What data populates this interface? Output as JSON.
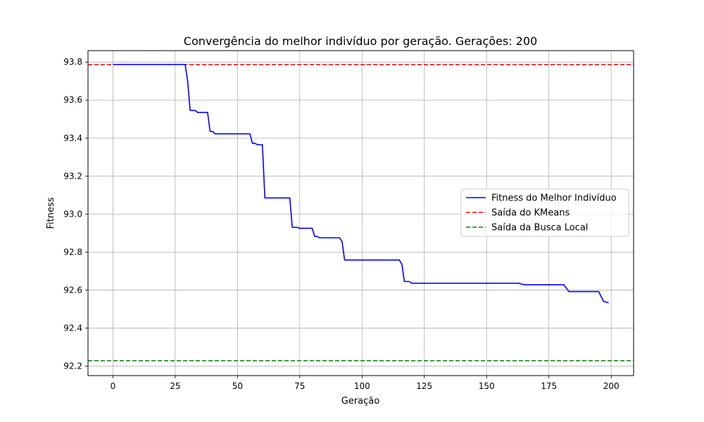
{
  "chart_data": {
    "type": "line",
    "title": "Convergência do melhor indivíduo por geração. Gerações: 200",
    "xlabel": "Geração",
    "ylabel": "Fitness",
    "xlim": [
      -10,
      209
    ],
    "ylim": [
      92.15,
      93.86
    ],
    "xticks": [
      0,
      25,
      50,
      75,
      100,
      125,
      150,
      175,
      200
    ],
    "yticks": [
      92.2,
      92.4,
      92.6,
      92.8,
      93.0,
      93.2,
      93.4,
      93.6,
      93.8
    ],
    "grid": true,
    "legend_position": "center-right",
    "series": [
      {
        "name": "Fitness do Melhor Indivíduo",
        "color": "#0000ff",
        "style": "solid",
        "points": [
          [
            0,
            93.787
          ],
          [
            29,
            93.787
          ],
          [
            30,
            93.7
          ],
          [
            31,
            93.545
          ],
          [
            33,
            93.545
          ],
          [
            34,
            93.535
          ],
          [
            38,
            93.535
          ],
          [
            39,
            93.435
          ],
          [
            40,
            93.435
          ],
          [
            41,
            93.422
          ],
          [
            55,
            93.422
          ],
          [
            56,
            93.372
          ],
          [
            57,
            93.372
          ],
          [
            58,
            93.365
          ],
          [
            60,
            93.365
          ],
          [
            61,
            93.085
          ],
          [
            71,
            93.085
          ],
          [
            72,
            92.93
          ],
          [
            74,
            92.93
          ],
          [
            75,
            92.925
          ],
          [
            80,
            92.925
          ],
          [
            81,
            92.882
          ],
          [
            82,
            92.882
          ],
          [
            83,
            92.875
          ],
          [
            91,
            92.875
          ],
          [
            92,
            92.855
          ],
          [
            93,
            92.758
          ],
          [
            115,
            92.758
          ],
          [
            116,
            92.735
          ],
          [
            117,
            92.645
          ],
          [
            119,
            92.645
          ],
          [
            120,
            92.636
          ],
          [
            163,
            92.636
          ],
          [
            165,
            92.628
          ],
          [
            181,
            92.628
          ],
          [
            183,
            92.592
          ],
          [
            195,
            92.592
          ],
          [
            196,
            92.565
          ],
          [
            197,
            92.54
          ],
          [
            199,
            92.533
          ]
        ]
      },
      {
        "name": "Saída do KMeans",
        "color": "#ff0000",
        "style": "dashed",
        "hline": 93.787
      },
      {
        "name": "Saída da Busca Local",
        "color": "#008000",
        "style": "dashed",
        "hline": 92.228
      }
    ]
  }
}
